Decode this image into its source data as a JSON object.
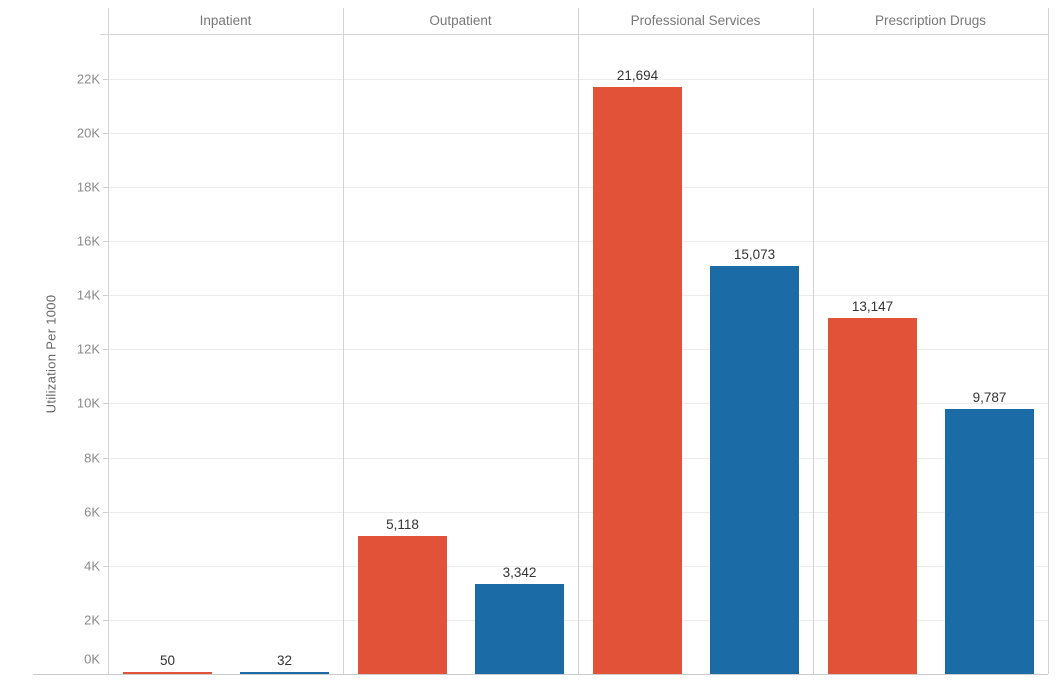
{
  "chart_data": {
    "type": "bar",
    "title": "",
    "ylabel": "Utilization Per 1000",
    "xlabel": "",
    "panels": [
      "Inpatient",
      "Outpatient",
      "Professional Services",
      "Prescription Drugs"
    ],
    "series": [
      {
        "name": "red-series",
        "color": "#E25238",
        "values": [
          50,
          5118,
          21694,
          13147
        ],
        "value_labels": [
          "50",
          "5,118",
          "21,694",
          "13,147"
        ]
      },
      {
        "name": "blue-series",
        "color": "#1A6BA6",
        "values": [
          32,
          3342,
          15073,
          9787
        ],
        "value_labels": [
          "32",
          "3,342",
          "15,073",
          "9,787"
        ]
      }
    ],
    "yticks": [
      {
        "value": 0,
        "label": "0K"
      },
      {
        "value": 2000,
        "label": "2K"
      },
      {
        "value": 4000,
        "label": "4K"
      },
      {
        "value": 6000,
        "label": "6K"
      },
      {
        "value": 8000,
        "label": "8K"
      },
      {
        "value": 10000,
        "label": "10K"
      },
      {
        "value": 12000,
        "label": "12K"
      },
      {
        "value": 14000,
        "label": "14K"
      },
      {
        "value": 16000,
        "label": "16K"
      },
      {
        "value": 18000,
        "label": "18K"
      },
      {
        "value": 20000,
        "label": "20K"
      },
      {
        "value": 22000,
        "label": "22K"
      }
    ],
    "ylim": [
      0,
      23650
    ],
    "grid": true,
    "legend": "none"
  },
  "colors": {
    "red_bar": "#E25238",
    "blue_bar": "#1A6BA6",
    "gridline": "#ECECEC",
    "panel_divider": "#D3D3D3",
    "axis_line": "#CBCBCB",
    "tick_text": "#8A8A8A",
    "header_text": "#787878",
    "value_text": "#333333",
    "axis_title_text": "#666666",
    "background": "#FFFFFF"
  }
}
